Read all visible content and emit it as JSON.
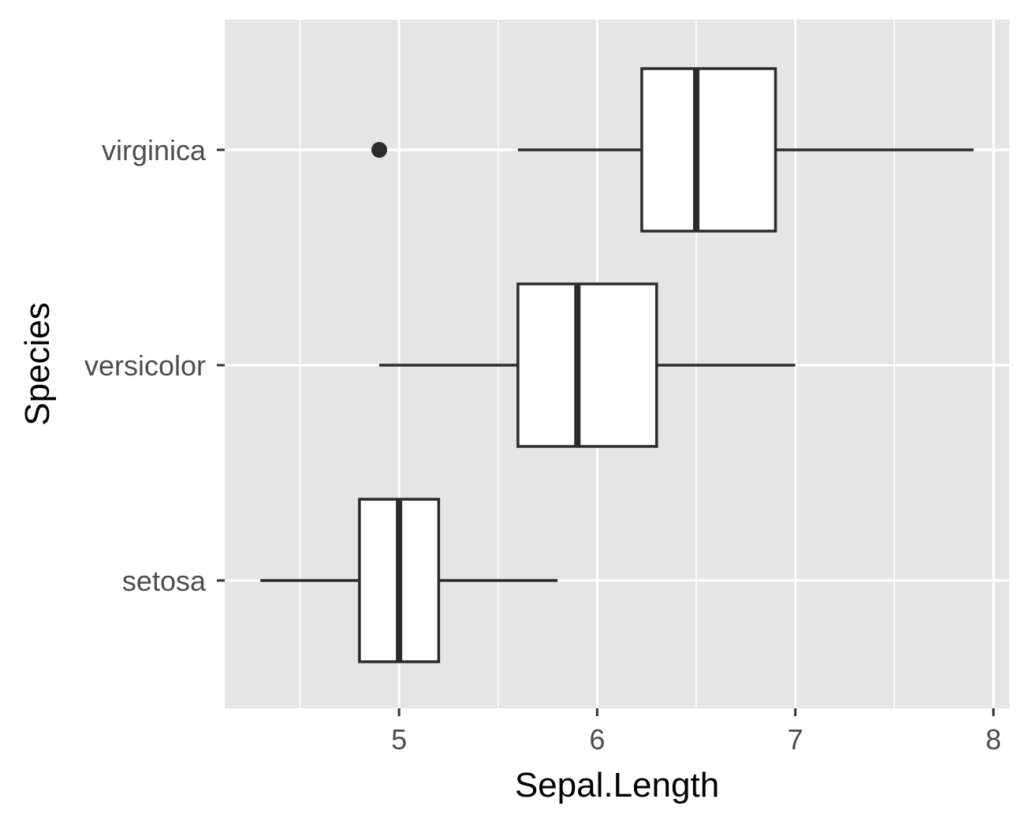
{
  "chart_data": {
    "type": "boxplot",
    "orientation": "horizontal",
    "title": "",
    "xlabel": "Sepal.Length",
    "ylabel": "Species",
    "xlim": [
      4.12,
      8.08
    ],
    "x_ticks": [
      5,
      6,
      7,
      8
    ],
    "x_tick_labels": [
      "5",
      "6",
      "7",
      "8"
    ],
    "x_minor_ticks": [
      4.5,
      5.5,
      6.5,
      7.5
    ],
    "categories": [
      "setosa",
      "versicolor",
      "virginica"
    ],
    "boxes": [
      {
        "category": "setosa",
        "whisker_low": 4.3,
        "q1": 4.8,
        "median": 5.0,
        "q3": 5.2,
        "whisker_high": 5.8,
        "outliers": []
      },
      {
        "category": "versicolor",
        "whisker_low": 4.9,
        "q1": 5.6,
        "median": 5.9,
        "q3": 6.3,
        "whisker_high": 7.0,
        "outliers": []
      },
      {
        "category": "virginica",
        "whisker_low": 5.6,
        "q1": 6.225,
        "median": 6.5,
        "q3": 6.9,
        "whisker_high": 7.9,
        "outliers": [
          4.9
        ]
      }
    ],
    "grid": true,
    "legend": "none",
    "colors": {
      "panel": "#e5e5e5",
      "grid": "#ffffff",
      "box_fill": "#ffffff",
      "box_line": "#2b2b2b",
      "tick_text": "#4d4d4d",
      "title_text": "#000000"
    }
  }
}
